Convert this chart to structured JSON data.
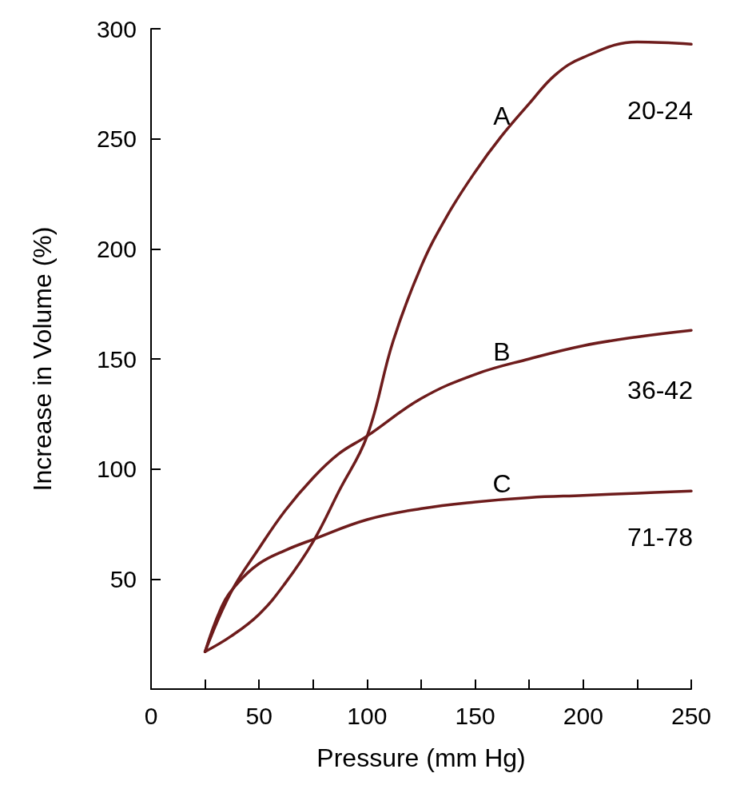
{
  "chart_data": {
    "type": "line",
    "xlabel": "Pressure (mm Hg)",
    "ylabel": "Increase in Volume (%)",
    "xlim": [
      0,
      250
    ],
    "xticks": [
      0,
      {
        "value": 25,
        "label": null
      },
      50,
      {
        "value": 75,
        "label": null
      },
      100,
      {
        "value": 125,
        "label": null
      },
      150,
      {
        "value": 175,
        "label": null
      },
      200,
      {
        "value": 225,
        "label": null
      },
      250
    ],
    "ylim": [
      0,
      300
    ],
    "yticks": [
      50,
      100,
      150,
      200,
      250,
      300
    ],
    "grid": false,
    "marker": "none",
    "series": [
      {
        "color": "#6e1c1c",
        "x": [
          25,
          37,
          50,
          62,
          75,
          87,
          100,
          112,
          125,
          137,
          150,
          162,
          175,
          187,
          200,
          225,
          250
        ],
        "values": [
          17,
          24,
          34,
          48,
          67,
          90,
          115,
          158,
          192,
          215,
          235,
          251,
          266,
          279,
          287,
          294,
          293
        ]
      },
      {
        "color": "#6e1c1c",
        "x": [
          25,
          37,
          50,
          62,
          75,
          87,
          100,
          125,
          150,
          175,
          200,
          225,
          250
        ],
        "values": [
          17,
          44,
          64,
          81,
          96,
          107,
          115,
          132,
          143,
          150,
          156,
          160,
          163
        ]
      },
      {
        "color": "#6e1c1c",
        "x": [
          25,
          33,
          40,
          50,
          62,
          75,
          100,
          125,
          150,
          175,
          200,
          225,
          250
        ],
        "values": [
          17,
          38,
          48,
          57,
          63,
          68,
          77,
          82,
          85,
          87,
          88,
          89,
          90
        ]
      }
    ],
    "annotations": [
      "A",
      "20-24",
      "B",
      "36-42",
      "C",
      "71-78"
    ]
  }
}
